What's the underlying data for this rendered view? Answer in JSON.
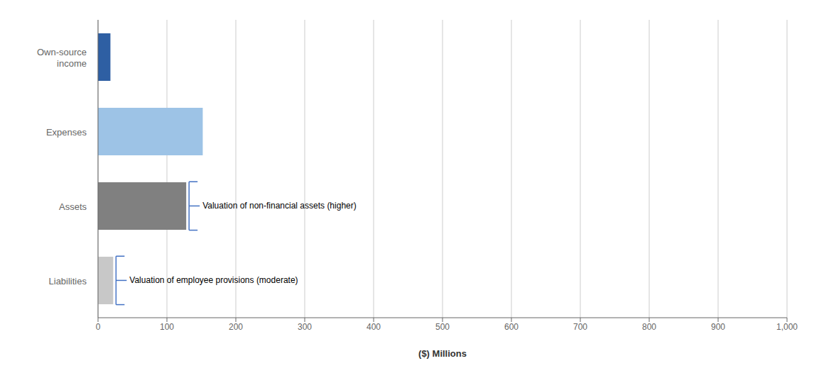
{
  "chart_data": {
    "type": "bar",
    "orientation": "horizontal",
    "categories": [
      "Own-source\nincome",
      "Expenses",
      "Assets",
      "Liabilities"
    ],
    "values": [
      18,
      152,
      128,
      22
    ],
    "colors": [
      "#2E5FA3",
      "#9DC3E6",
      "#808080",
      "#C8C8C8"
    ],
    "xlim": [
      0,
      1000
    ],
    "xticks": [
      0,
      100,
      200,
      300,
      400,
      500,
      600,
      700,
      800,
      900,
      {
        "value": 1000,
        "label": "1,000"
      }
    ],
    "xlabel": "($) Millions",
    "grid": true,
    "annotations": [
      {
        "category": "Assets",
        "text": "Valuation of non-financial assets (higher)",
        "color": "#4472C4"
      },
      {
        "category": "Liabilities",
        "text": "Valuation of employee provisions (moderate)",
        "color": "#4472C4"
      }
    ]
  }
}
